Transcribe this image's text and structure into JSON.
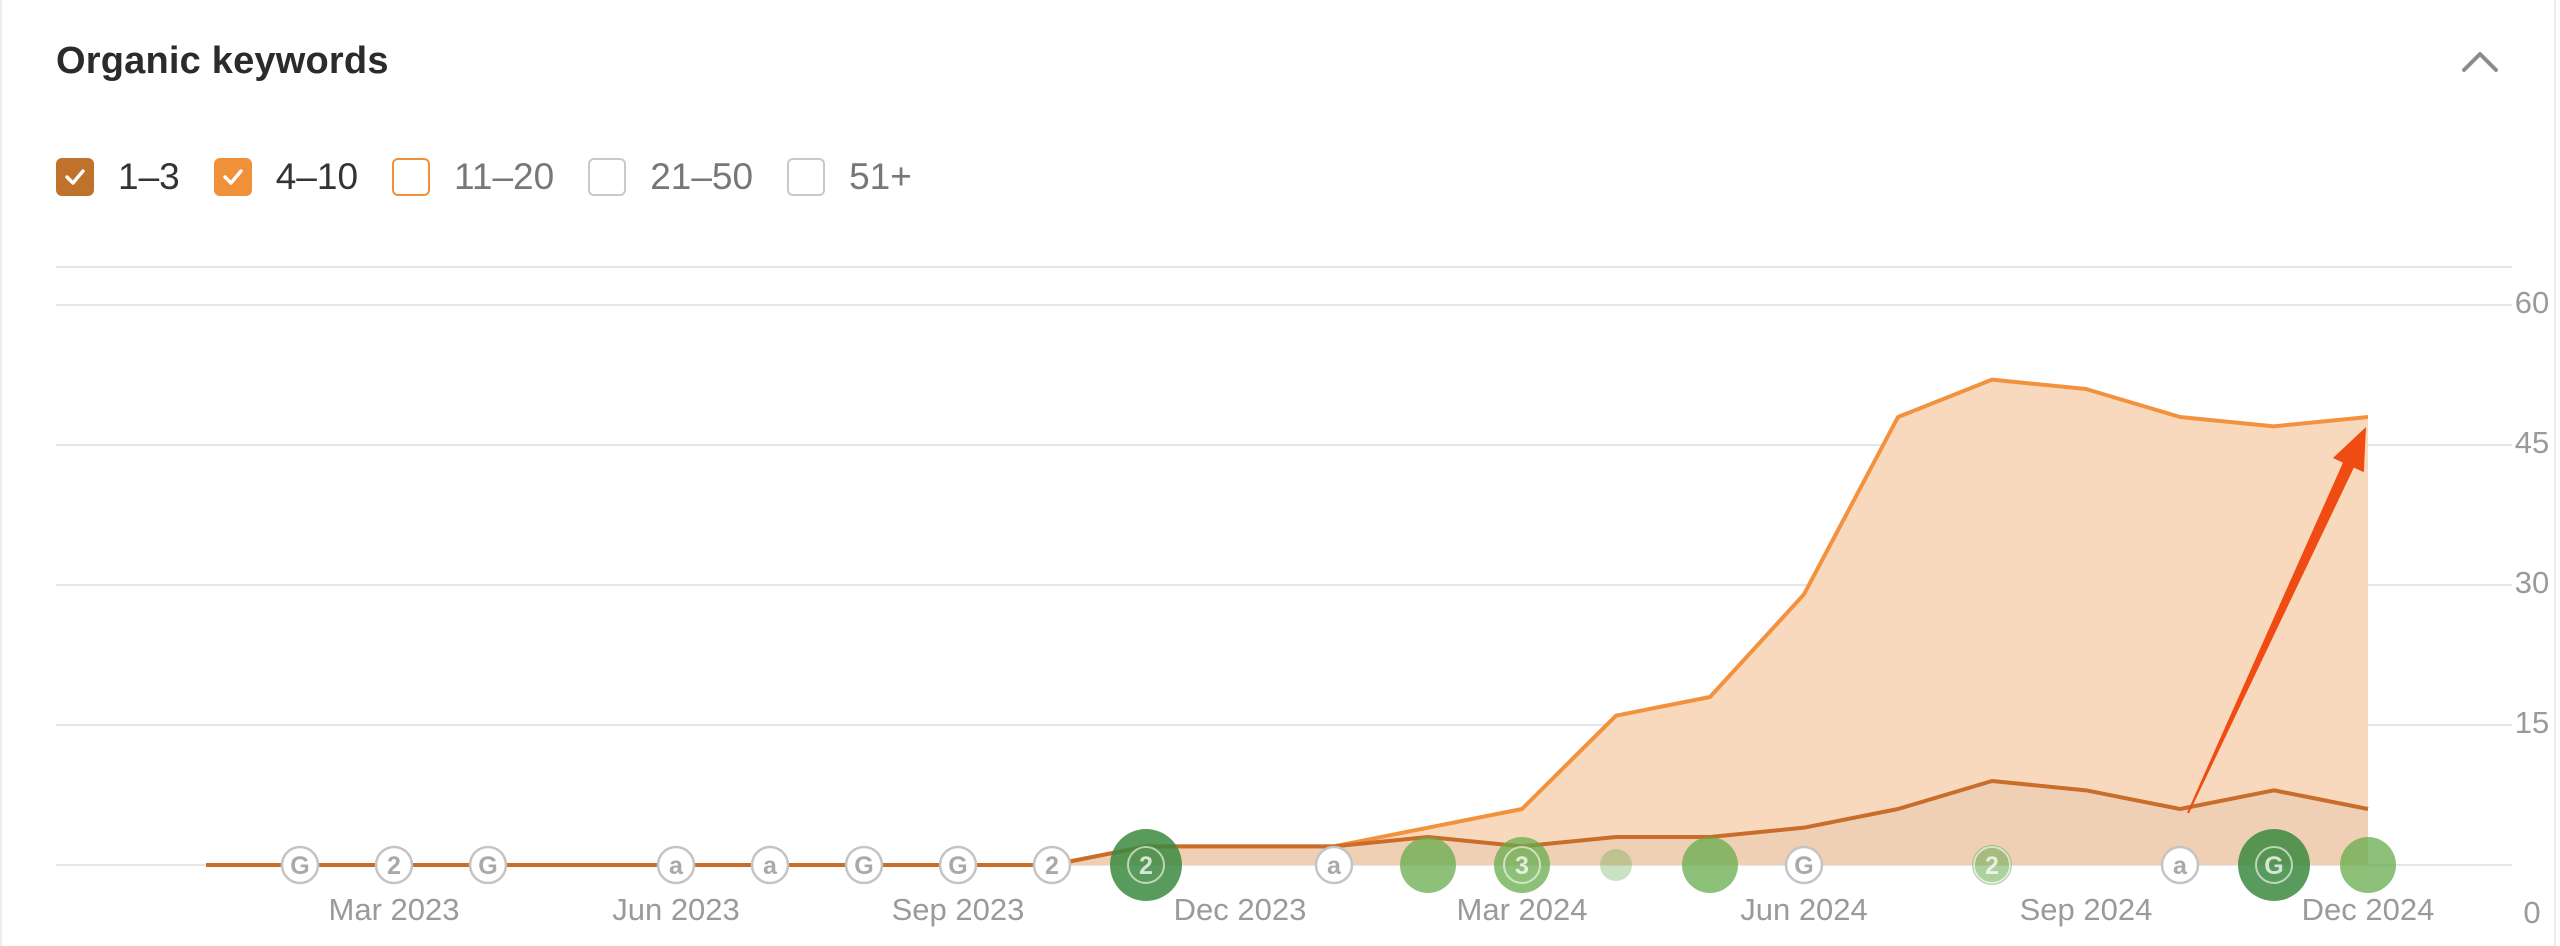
{
  "card": {
    "title": "Organic keywords"
  },
  "legend": [
    {
      "label": "1–3",
      "checked": true,
      "color": "#c0712b"
    },
    {
      "label": "4–10",
      "checked": true,
      "color": "#f0913a"
    },
    {
      "label": "11–20",
      "checked": false,
      "color": "#f0913a"
    },
    {
      "label": "21–50",
      "checked": false,
      "color": "#c9c9c9"
    },
    {
      "label": "51+",
      "checked": false,
      "color": "#c9c9c9"
    }
  ],
  "colors": {
    "top3_line": "#c96d2a",
    "top10_line": "#f2923e",
    "area_fill": "#f9d9bd",
    "grid": "#e6e6e6",
    "axis_text": "#9a9a9a",
    "annotation_arrow": "#f04b12",
    "marker_green": "#67ac4c",
    "marker_dark_green": "#3c8a3f"
  },
  "chart_data": {
    "type": "area",
    "x": [
      "2023-01",
      "2023-02",
      "2023-03",
      "2023-04",
      "2023-05",
      "2023-06",
      "2023-07",
      "2023-08",
      "2023-09",
      "2023-10",
      "2023-11",
      "2023-12",
      "2024-01",
      "2024-02",
      "2024-03",
      "2024-04",
      "2024-05",
      "2024-06",
      "2024-07",
      "2024-08",
      "2024-09",
      "2024-10",
      "2024-11",
      "2024-12"
    ],
    "x_tick_labels": [
      "Mar 2023",
      "Jun 2023",
      "Sep 2023",
      "Dec 2023",
      "Mar 2024",
      "Jun 2024",
      "Sep 2024",
      "Dec 2024"
    ],
    "series": [
      {
        "name": "1–3",
        "values": [
          0,
          0,
          0,
          0,
          0,
          0,
          0,
          0,
          0,
          0,
          2,
          2,
          2,
          3,
          2,
          3,
          3,
          4,
          6,
          9,
          8,
          6,
          8,
          6
        ]
      },
      {
        "name": "4–10",
        "values": [
          0,
          0,
          0,
          0,
          0,
          0,
          0,
          0,
          0,
          0,
          2,
          2,
          2,
          4,
          6,
          16,
          18,
          29,
          48,
          52,
          51,
          48,
          47,
          48
        ]
      }
    ],
    "y_ticks": [
      60,
      45,
      30,
      15,
      0
    ],
    "ylim": [
      0,
      60
    ],
    "stacked": true,
    "grid": true,
    "markers": [
      {
        "x": "2023-02",
        "label": "G",
        "kind": "outline"
      },
      {
        "x": "2023-03",
        "label": "2",
        "kind": "outline"
      },
      {
        "x": "2023-04",
        "label": "G",
        "kind": "outline"
      },
      {
        "x": "2023-06",
        "label": "a",
        "kind": "outline"
      },
      {
        "x": "2023-07",
        "label": "a",
        "kind": "outline"
      },
      {
        "x": "2023-08",
        "label": "G",
        "kind": "outline"
      },
      {
        "x": "2023-09",
        "label": "G",
        "kind": "outline"
      },
      {
        "x": "2023-10",
        "label": "2",
        "kind": "outline"
      },
      {
        "x": "2023-11",
        "label": "2",
        "kind": "green-large-dark"
      },
      {
        "x": "2024-01",
        "label": "a",
        "kind": "outline"
      },
      {
        "x": "2024-02",
        "label": "",
        "kind": "green"
      },
      {
        "x": "2024-03",
        "label": "3",
        "kind": "green"
      },
      {
        "x": "2024-04",
        "label": "",
        "kind": "green-small-faint"
      },
      {
        "x": "2024-05",
        "label": "",
        "kind": "green"
      },
      {
        "x": "2024-06",
        "label": "G",
        "kind": "outline"
      },
      {
        "x": "2024-08",
        "label": "2",
        "kind": "green-small"
      },
      {
        "x": "2024-10",
        "label": "a",
        "kind": "outline"
      },
      {
        "x": "2024-11",
        "label": "G",
        "kind": "green-large-dark"
      },
      {
        "x": "2024-12",
        "label": "",
        "kind": "green"
      }
    ],
    "annotation": {
      "type": "arrow",
      "from_x": "2024-10",
      "from_y": 6,
      "to_x": "2024-12",
      "to_y": 48
    }
  }
}
